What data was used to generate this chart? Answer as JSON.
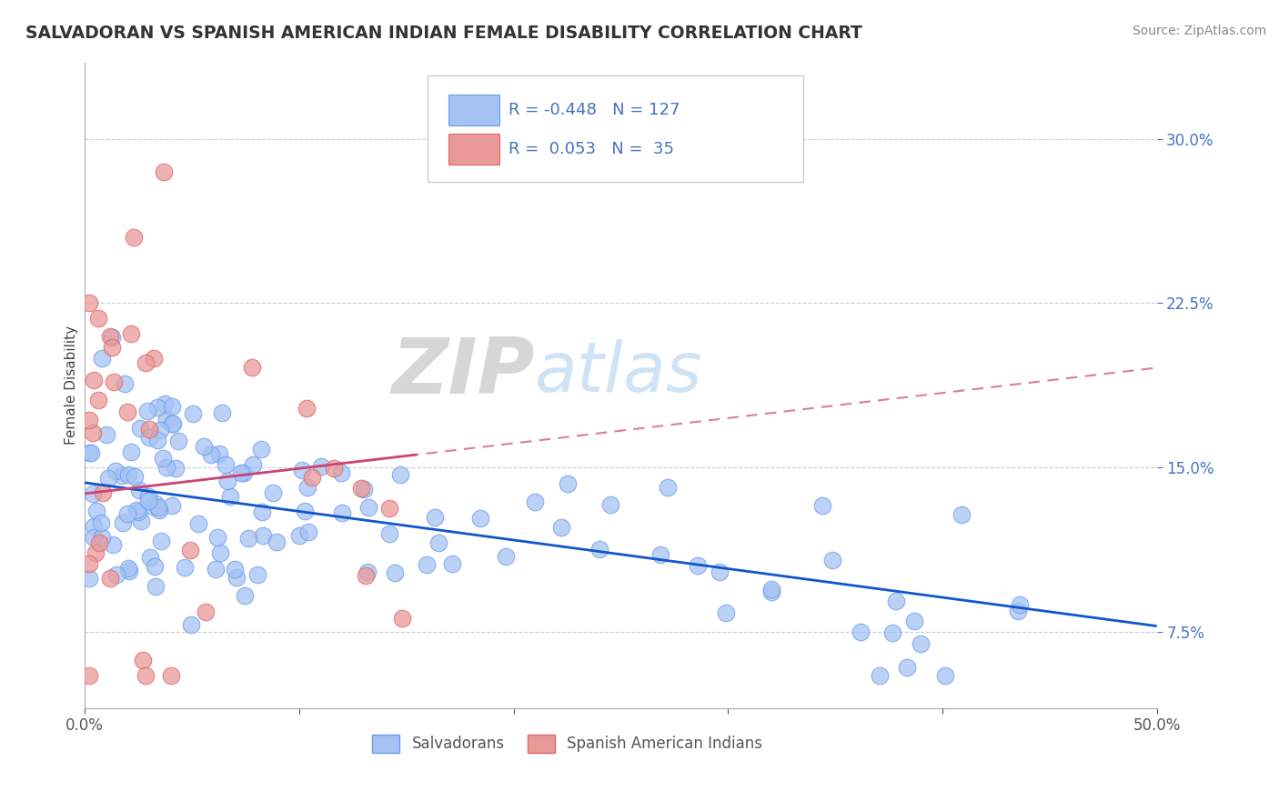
{
  "title": "SALVADORAN VS SPANISH AMERICAN INDIAN FEMALE DISABILITY CORRELATION CHART",
  "source": "Source: ZipAtlas.com",
  "ylabel": "Female Disability",
  "yticks": [
    "7.5%",
    "15.0%",
    "22.5%",
    "30.0%"
  ],
  "ytick_vals": [
    0.075,
    0.15,
    0.225,
    0.3
  ],
  "xlim": [
    0.0,
    0.5
  ],
  "ylim": [
    0.04,
    0.335
  ],
  "R_blue": -0.448,
  "N_blue": 127,
  "R_pink": 0.053,
  "N_pink": 35,
  "blue_color": "#a4c2f4",
  "blue_edge_color": "#6d9eeb",
  "pink_color": "#ea9999",
  "pink_edge_color": "#e06666",
  "blue_line_color": "#1155cc",
  "pink_line_color": "#cc4477",
  "pink_dash_color": "#e06090",
  "watermark_zip": "ZIP",
  "watermark_atlas": "atlas",
  "legend_label_blue": "Salvadorans",
  "legend_label_pink": "Spanish American Indians",
  "blue_slope": -0.131,
  "blue_intercept": 0.143,
  "pink_slope": 0.115,
  "pink_intercept": 0.138
}
